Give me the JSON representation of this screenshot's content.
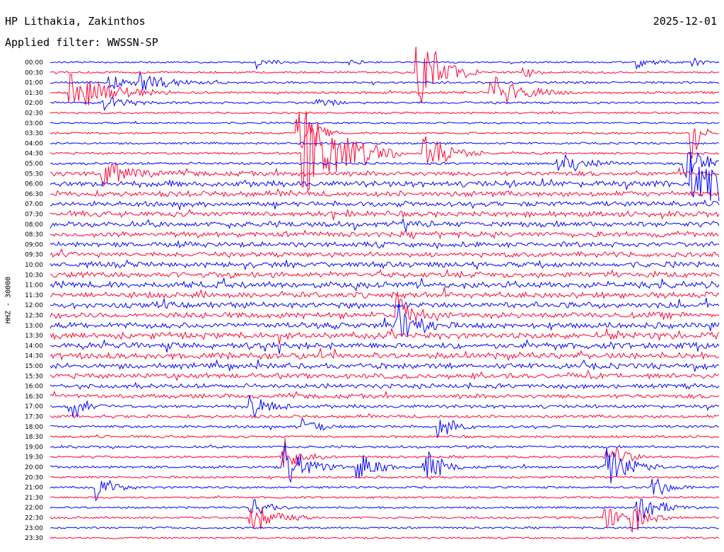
{
  "header": {
    "station": "HP Lithakia, Zakinthos",
    "date": "2025-12-01",
    "filter_label": "Applied filter: WWSSN-SP"
  },
  "chart_data": {
    "type": "line",
    "subtype": "helicorder",
    "ylabel": "HHZ - 30000",
    "trace_colors": [
      "#0000ff",
      "#ff0033"
    ],
    "rows": [
      {
        "label": "00:00",
        "activity": 0.1,
        "events": [
          {
            "t": 0.31,
            "a": 0.2,
            "d": 0.02
          },
          {
            "t": 0.45,
            "a": 0.15,
            "d": 0.01
          },
          {
            "t": 0.88,
            "a": 0.2,
            "d": 0.02
          },
          {
            "t": 0.96,
            "a": 0.2,
            "d": 0.02
          }
        ]
      },
      {
        "label": "00:30",
        "activity": 0.12,
        "events": [
          {
            "t": 0.55,
            "a": 1.6,
            "d": 0.03
          },
          {
            "t": 0.71,
            "a": 0.3,
            "d": 0.01
          }
        ]
      },
      {
        "label": "01:00",
        "activity": 0.15,
        "events": [
          {
            "t": 0.09,
            "a": 0.3,
            "d": 0.03
          },
          {
            "t": 0.13,
            "a": 0.4,
            "d": 0.04
          }
        ]
      },
      {
        "label": "01:30",
        "activity": 0.15,
        "events": [
          {
            "t": 0.03,
            "a": 0.9,
            "d": 0.05
          },
          {
            "t": 0.66,
            "a": 0.7,
            "d": 0.04
          }
        ]
      },
      {
        "label": "02:00",
        "activity": 0.15,
        "events": [
          {
            "t": 0.08,
            "a": 0.3,
            "d": 0.03
          },
          {
            "t": 0.4,
            "a": 0.2,
            "d": 0.02
          }
        ]
      },
      {
        "label": "02:30",
        "activity": 0.1,
        "events": []
      },
      {
        "label": "03:00",
        "activity": 0.1,
        "events": []
      },
      {
        "label": "03:30",
        "activity": 0.12,
        "events": [
          {
            "t": 0.37,
            "a": 1.5,
            "d": 0.02
          },
          {
            "t": 0.96,
            "a": 1.4,
            "d": 0.01
          }
        ]
      },
      {
        "label": "04:00",
        "activity": 0.12,
        "events": []
      },
      {
        "label": "04:30",
        "activity": 0.15,
        "events": [
          {
            "t": 0.38,
            "a": 2.2,
            "d": 0.05
          },
          {
            "t": 0.56,
            "a": 0.8,
            "d": 0.03
          }
        ]
      },
      {
        "label": "05:00",
        "activity": 0.2,
        "events": [
          {
            "t": 0.76,
            "a": 0.5,
            "d": 0.03
          },
          {
            "t": 0.95,
            "a": 0.8,
            "d": 0.03
          }
        ]
      },
      {
        "label": "05:30",
        "activity": 0.45,
        "events": [
          {
            "t": 0.08,
            "a": 0.6,
            "d": 0.03
          }
        ]
      },
      {
        "label": "06:00",
        "activity": 0.6,
        "events": [
          {
            "t": 0.96,
            "a": 1.5,
            "d": 0.04
          }
        ]
      },
      {
        "label": "06:30",
        "activity": 0.55,
        "events": []
      },
      {
        "label": "07:00",
        "activity": 0.5,
        "events": []
      },
      {
        "label": "07:30",
        "activity": 0.55,
        "events": []
      },
      {
        "label": "08:00",
        "activity": 0.55,
        "events": []
      },
      {
        "label": "08:30",
        "activity": 0.55,
        "events": []
      },
      {
        "label": "09:00",
        "activity": 0.5,
        "events": []
      },
      {
        "label": "09:30",
        "activity": 0.5,
        "events": []
      },
      {
        "label": "10:00",
        "activity": 0.55,
        "events": []
      },
      {
        "label": "10:30",
        "activity": 0.6,
        "events": []
      },
      {
        "label": "11:00",
        "activity": 0.65,
        "events": []
      },
      {
        "label": "11:30",
        "activity": 0.6,
        "events": []
      },
      {
        "label": "12:00",
        "activity": 0.6,
        "events": []
      },
      {
        "label": "12:30",
        "activity": 0.6,
        "events": [
          {
            "t": 0.52,
            "a": 0.8,
            "d": 0.02
          }
        ]
      },
      {
        "label": "13:00",
        "activity": 0.6,
        "events": [
          {
            "t": 0.52,
            "a": 1.2,
            "d": 0.02
          }
        ]
      },
      {
        "label": "13:30",
        "activity": 0.65,
        "events": []
      },
      {
        "label": "14:00",
        "activity": 0.65,
        "events": []
      },
      {
        "label": "14:30",
        "activity": 0.65,
        "events": []
      },
      {
        "label": "15:00",
        "activity": 0.55,
        "events": []
      },
      {
        "label": "15:30",
        "activity": 0.5,
        "events": []
      },
      {
        "label": "16:00",
        "activity": 0.45,
        "events": []
      },
      {
        "label": "16:30",
        "activity": 0.4,
        "events": []
      },
      {
        "label": "17:00",
        "activity": 0.3,
        "events": [
          {
            "t": 0.03,
            "a": 0.6,
            "d": 0.02
          },
          {
            "t": 0.3,
            "a": 0.5,
            "d": 0.02
          }
        ]
      },
      {
        "label": "17:30",
        "activity": 0.25,
        "events": []
      },
      {
        "label": "18:00",
        "activity": 0.2,
        "events": [
          {
            "t": 0.38,
            "a": 0.4,
            "d": 0.02
          },
          {
            "t": 0.58,
            "a": 0.5,
            "d": 0.02
          }
        ]
      },
      {
        "label": "18:30",
        "activity": 0.18,
        "events": []
      },
      {
        "label": "19:00",
        "activity": 0.18,
        "events": []
      },
      {
        "label": "19:30",
        "activity": 0.18,
        "events": [
          {
            "t": 0.35,
            "a": 0.8,
            "d": 0.02
          },
          {
            "t": 0.83,
            "a": 0.8,
            "d": 0.02
          }
        ]
      },
      {
        "label": "20:00",
        "activity": 0.18,
        "events": [
          {
            "t": 0.35,
            "a": 1.0,
            "d": 0.03
          },
          {
            "t": 0.46,
            "a": 0.8,
            "d": 0.02
          },
          {
            "t": 0.56,
            "a": 0.9,
            "d": 0.02
          },
          {
            "t": 0.83,
            "a": 1.0,
            "d": 0.03
          }
        ]
      },
      {
        "label": "20:30",
        "activity": 0.15,
        "events": []
      },
      {
        "label": "21:00",
        "activity": 0.15,
        "events": [
          {
            "t": 0.07,
            "a": 0.6,
            "d": 0.02
          },
          {
            "t": 0.9,
            "a": 0.5,
            "d": 0.02
          }
        ]
      },
      {
        "label": "21:30",
        "activity": 0.12,
        "events": []
      },
      {
        "label": "22:00",
        "activity": 0.12,
        "events": [
          {
            "t": 0.3,
            "a": 0.5,
            "d": 0.02
          },
          {
            "t": 0.88,
            "a": 0.6,
            "d": 0.03
          }
        ]
      },
      {
        "label": "22:30",
        "activity": 0.15,
        "events": [
          {
            "t": 0.3,
            "a": 0.6,
            "d": 0.03
          },
          {
            "t": 0.83,
            "a": 0.6,
            "d": 0.02
          },
          {
            "t": 0.87,
            "a": 0.6,
            "d": 0.02
          }
        ]
      },
      {
        "label": "23:00",
        "activity": 0.12,
        "events": []
      },
      {
        "label": "23:30",
        "activity": 0.1,
        "events": []
      }
    ]
  }
}
